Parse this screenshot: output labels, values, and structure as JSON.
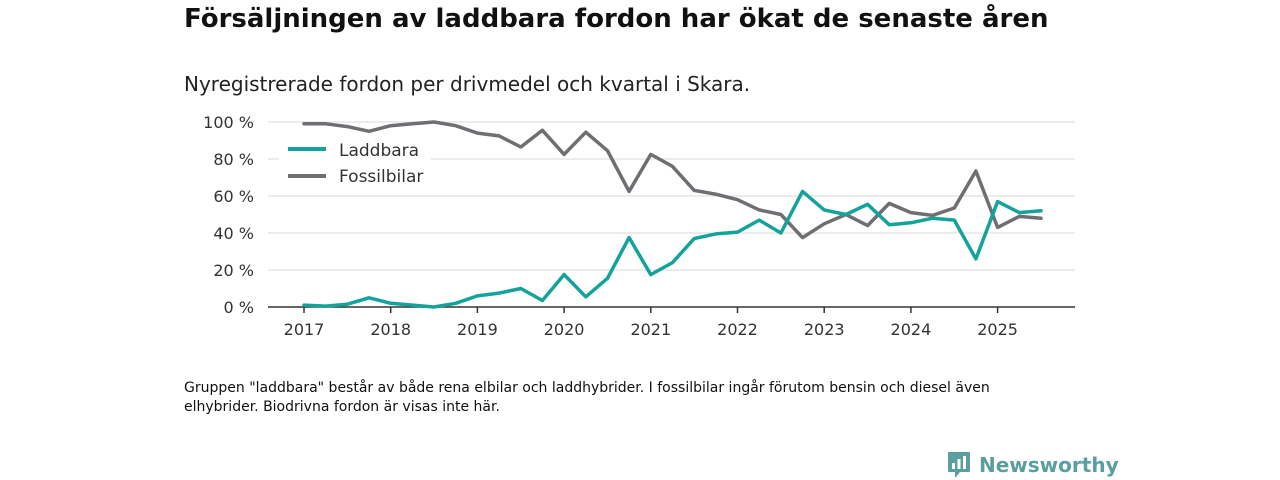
{
  "header": {
    "title": "Försäljningen av laddbara fordon har ökat de senaste åren",
    "subtitle": "Nyregistrerade fordon per drivmedel och kvartal i Skara."
  },
  "footnote": "Gruppen \"laddbara\" består av både rena elbilar och laddhybrider. I fossilbilar ingår förutom bensin och diesel även elhybrider. Biodrivna fordon är visas inte här.",
  "brand": {
    "name": "Newsworthy",
    "icon": "newsworthy-logo-icon"
  },
  "colors": {
    "laddbara": "#13a39a",
    "fossil": "#6e6e73",
    "grid": "#d9d9d9",
    "axis": "#333333"
  },
  "chart_data": {
    "type": "line",
    "title": "Försäljningen av laddbara fordon har ökat de senaste åren",
    "xlabel": "",
    "ylabel": "",
    "x_start": 2017,
    "x_step": 0.25,
    "xlim": [
      2016.6,
      2025.95
    ],
    "ylim": [
      0,
      100
    ],
    "y_ticks": [
      0,
      20,
      40,
      60,
      80,
      100
    ],
    "y_tick_labels": [
      "0 %",
      "20 %",
      "40 %",
      "60 %",
      "80 %",
      "100 %"
    ],
    "x_ticks": [
      2017,
      2018,
      2019,
      2020,
      2021,
      2022,
      2023,
      2024,
      2025
    ],
    "x_tick_labels": [
      "2017",
      "2018",
      "2019",
      "2020",
      "2021",
      "2022",
      "2023",
      "2024",
      "2025"
    ],
    "legend_position": "top-left",
    "series": [
      {
        "name": "Laddbara",
        "color_key": "laddbara",
        "values": [
          1,
          0.5,
          1.5,
          5,
          2,
          1,
          0,
          2,
          6,
          7.5,
          10,
          3.5,
          17.5,
          5.5,
          15.5,
          37.5,
          17.5,
          24,
          37,
          39.5,
          40.5,
          47,
          40,
          62.5,
          52.5,
          50,
          55.5,
          44.5,
          45.5,
          48,
          47,
          26,
          57,
          51,
          52
        ]
      },
      {
        "name": "Fossilbilar",
        "color_key": "fossil",
        "values": [
          99,
          99,
          97.5,
          95,
          98,
          99,
          100,
          98,
          94,
          92.5,
          86.5,
          95.5,
          82.5,
          94.5,
          84.5,
          62.5,
          82.5,
          76,
          63,
          61,
          58,
          52.5,
          50,
          37.5,
          45,
          50,
          44,
          56,
          51,
          49.5,
          53.5,
          73.5,
          43,
          49,
          48
        ]
      }
    ]
  }
}
